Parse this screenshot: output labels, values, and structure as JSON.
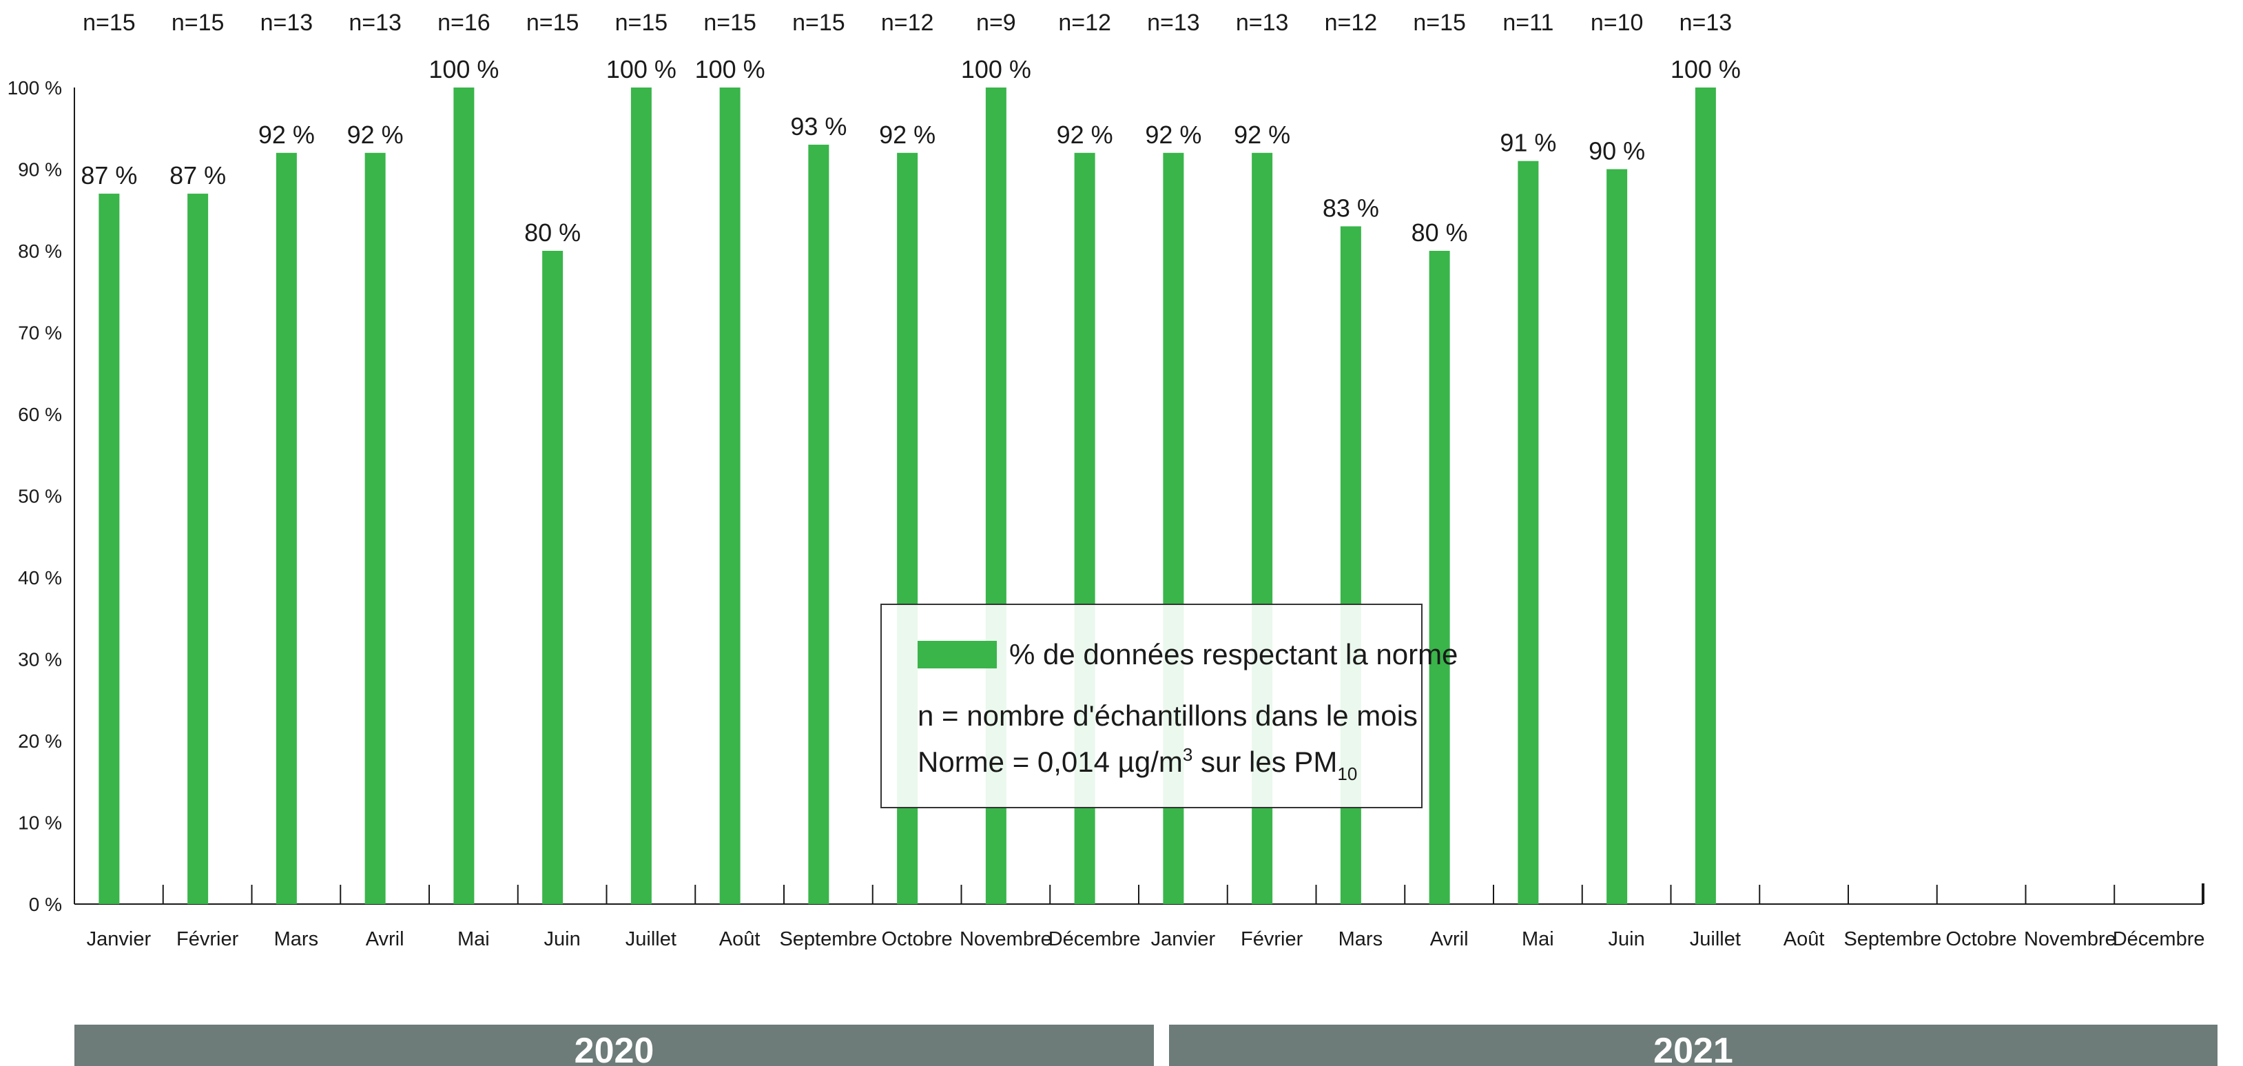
{
  "chart_data": {
    "type": "bar",
    "categories": [
      "Janvier",
      "Février",
      "Mars",
      "Avril",
      "Mai",
      "Juin",
      "Juillet",
      "Août",
      "Septembre",
      "Octobre",
      "Novembre",
      "Décembre",
      "Janvier",
      "Février",
      "Mars",
      "Avril",
      "Mai",
      "Juin",
      "Juillet",
      "Août",
      "Septembre",
      "Octobre",
      "Novembre",
      "Décembre"
    ],
    "values": [
      87,
      87,
      92,
      92,
      100,
      80,
      100,
      100,
      93,
      92,
      100,
      92,
      92,
      92,
      83,
      80,
      91,
      90,
      100,
      null,
      null,
      null,
      null,
      null
    ],
    "value_labels": [
      "87 %",
      "87 %",
      "92 %",
      "92 %",
      "100 %",
      "80 %",
      "100 %",
      "100 %",
      "93 %",
      "92 %",
      "100 %",
      "92 %",
      "92 %",
      "92 %",
      "83 %",
      "80 %",
      "91 %",
      "90 %",
      "100 %",
      "",
      "",
      "",
      "",
      ""
    ],
    "n_labels": [
      "n=15",
      "n=15",
      "n=13",
      "n=13",
      "n=16",
      "n=15",
      "n=15",
      "n=15",
      "n=15",
      "n=12",
      "n=9",
      "n=12",
      "n=13",
      "n=13",
      "n=12",
      "n=15",
      "n=11",
      "n=10",
      "n=13",
      "",
      "",
      "",
      "",
      ""
    ],
    "ylim": [
      0,
      100
    ],
    "yticks": [
      0,
      10,
      20,
      30,
      40,
      50,
      60,
      70,
      80,
      90,
      100
    ],
    "ytick_labels": [
      "0 %",
      "10 %",
      "20 %",
      "30 %",
      "40 %",
      "50 %",
      "60 %",
      "70 %",
      "80 %",
      "90 %",
      "100 %"
    ],
    "year_groups": [
      {
        "label": "2020",
        "start": 0,
        "end": 11
      },
      {
        "label": "2021",
        "start": 12,
        "end": 23
      }
    ],
    "series": [
      {
        "name": "% de données respectant la norme",
        "color": "#39b54a"
      }
    ],
    "legend": {
      "series_label": "% de données respectant la norme",
      "note_n": "n = nombre d'échantillons dans le mois",
      "norme_prefix": "Norme = 0,014 µg/m",
      "norme_sup": "3",
      "norme_mid": " sur les PM",
      "norme_sub": "10",
      "placement": "center"
    },
    "colors": {
      "bar": "#39b54a",
      "year_band": "#6d7b79",
      "axis": "#1a1a1a"
    }
  }
}
